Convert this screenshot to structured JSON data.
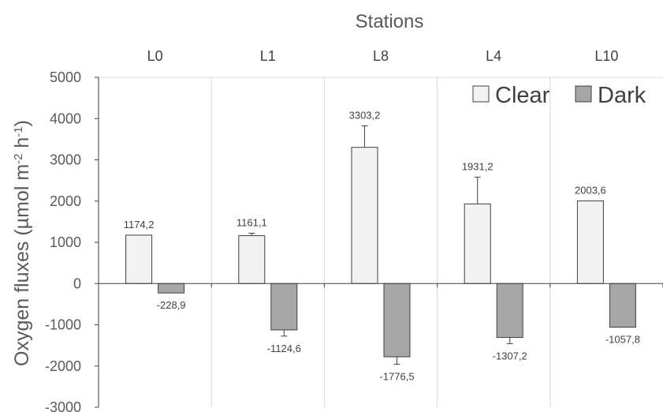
{
  "chart_data": {
    "type": "bar",
    "title": "Stations",
    "ylabel_main": "Oxygen fluxes (µmol m",
    "ylabel_sup1": "-2",
    "ylabel_mid": " h",
    "ylabel_sup2": "-1",
    "ylabel_end": ")",
    "categories": [
      "L0",
      "L1",
      "L8",
      "L4",
      "L10"
    ],
    "ylim": [
      -3000,
      5000
    ],
    "yticks": [
      5000,
      4000,
      3000,
      2000,
      1000,
      0,
      -1000,
      -2000,
      -3000
    ],
    "ytick_labels": [
      "5000",
      "4000",
      "3000",
      "2000",
      "1000",
      "0",
      "-1000",
      "-2000",
      "-3000"
    ],
    "legend_position": "top-right",
    "grid": "vertical",
    "series": [
      {
        "name": "Clear",
        "color": "#f2f2f2",
        "values": [
          1174.2,
          1161.1,
          3303.2,
          1931.2,
          2003.6
        ],
        "labels": [
          "1174,2",
          "1161,1",
          "3303,2",
          "1931,2",
          "2003,6"
        ],
        "errors": [
          0,
          60,
          520,
          650,
          0
        ]
      },
      {
        "name": "Dark",
        "color": "#a6a6a6",
        "values": [
          -228.9,
          -1124.6,
          -1776.5,
          -1307.2,
          -1057.8
        ],
        "labels": [
          "-228,9",
          "-1124,6",
          "-1776,5",
          "-1307,2",
          "-1057,8"
        ],
        "errors": [
          0,
          150,
          180,
          150,
          0
        ]
      }
    ]
  }
}
